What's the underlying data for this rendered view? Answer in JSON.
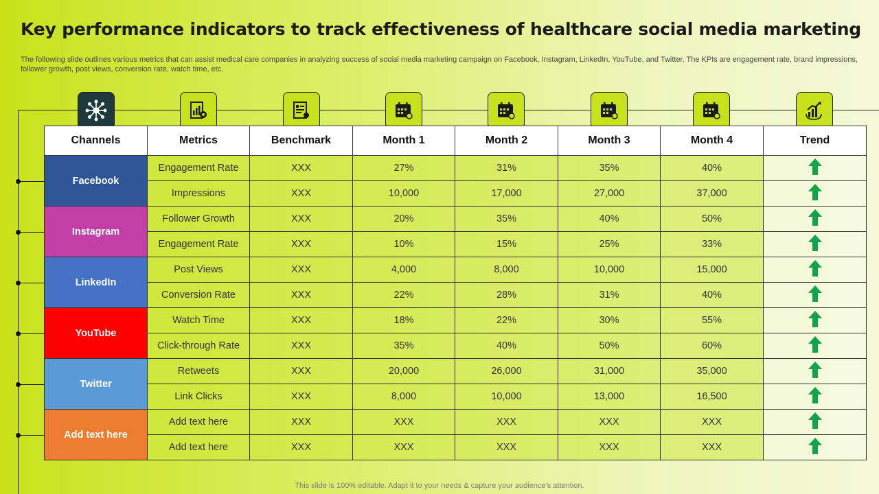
{
  "title": "Key performance indicators to track effectiveness of healthcare social media marketing",
  "subtitle": "The following slide outlines various metrics that can assist medical care companies in analyzing success of social media marketing campaign on Facebook, Instagram, LinkedIn, YouTube, and Twitter.  The KPIs are engagement rate, brand impressions, follower growth, post views, conversion rate, watch time, etc.",
  "header_icons": [
    "network-hub-icon",
    "report-gear-icon",
    "certificate-icon",
    "calendar-icon",
    "calendar-icon",
    "calendar-icon",
    "calendar-icon",
    "growth-chart-icon"
  ],
  "table": {
    "headers": [
      "Channels",
      "Metrics",
      "Benchmark",
      "Month 1",
      "Month 2",
      "Month 3",
      "Month 4",
      "Trend"
    ],
    "channels": [
      {
        "name": "Facebook",
        "color": "#2f5597",
        "rows": [
          {
            "metric": "Engagement Rate",
            "benchmark": "XXX",
            "m1": "27%",
            "m2": "31%",
            "m3": "35%",
            "m4": "40%",
            "trend": "up"
          },
          {
            "metric": "Impressions",
            "benchmark": "XXX",
            "m1": "10,000",
            "m2": "17,000",
            "m3": "27,000",
            "m4": "37,000",
            "trend": "up"
          }
        ]
      },
      {
        "name": "Instagram",
        "color": "#c23fa8",
        "rows": [
          {
            "metric": "Follower Growth",
            "benchmark": "XXX",
            "m1": "20%",
            "m2": "35%",
            "m3": "40%",
            "m4": "50%",
            "trend": "up"
          },
          {
            "metric": "Engagement Rate",
            "benchmark": "XXX",
            "m1": "10%",
            "m2": "15%",
            "m3": "25%",
            "m4": "33%",
            "trend": "up"
          }
        ]
      },
      {
        "name": "LinkedIn",
        "color": "#4472c4",
        "rows": [
          {
            "metric": "Post Views",
            "benchmark": "XXX",
            "m1": "4,000",
            "m2": "8,000",
            "m3": "10,000",
            "m4": "15,000",
            "trend": "up"
          },
          {
            "metric": "Conversion Rate",
            "benchmark": "XXX",
            "m1": "22%",
            "m2": "28%",
            "m3": "31%",
            "m4": "40%",
            "trend": "up"
          }
        ]
      },
      {
        "name": "YouTube",
        "color": "#ff0000",
        "rows": [
          {
            "metric": "Watch Time",
            "benchmark": "XXX",
            "m1": "18%",
            "m2": "22%",
            "m3": "30%",
            "m4": "55%",
            "trend": "up"
          },
          {
            "metric": "Click-through Rate",
            "benchmark": "XXX",
            "m1": "35%",
            "m2": "40%",
            "m3": "50%",
            "m4": "60%",
            "trend": "up"
          }
        ]
      },
      {
        "name": "Twitter",
        "color": "#5b9bd5",
        "rows": [
          {
            "metric": "Retweets",
            "benchmark": "XXX",
            "m1": "20,000",
            "m2": "26,000",
            "m3": "31,000",
            "m4": "35,000",
            "trend": "up"
          },
          {
            "metric": "Link Clicks",
            "benchmark": "XXX",
            "m1": "8,000",
            "m2": "10,000",
            "m3": "13,000",
            "m4": "16,500",
            "trend": "up"
          }
        ]
      },
      {
        "name": "Add text here",
        "color": "#ed7d31",
        "rows": [
          {
            "metric": "Add text here",
            "benchmark": "XXX",
            "m1": "XXX",
            "m2": "XXX",
            "m3": "XXX",
            "m4": "XXX",
            "trend": "up"
          },
          {
            "metric": "Add text here",
            "benchmark": "XXX",
            "m1": "XXX",
            "m2": "XXX",
            "m3": "XXX",
            "m4": "XXX",
            "trend": "up"
          }
        ]
      }
    ]
  },
  "colors": {
    "arrow_up": "#11a34a",
    "icon_bg": "#c7e21c",
    "icon_dark_bg": "#1f3a3a"
  },
  "footer": "This slide is 100% editable. Adapt it to your needs & capture your audience’s attention."
}
